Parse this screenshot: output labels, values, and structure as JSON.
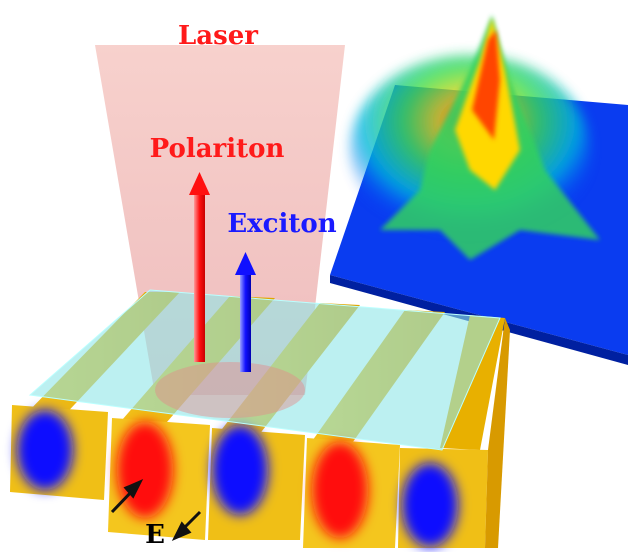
{
  "labels": {
    "laser": "Laser",
    "polariton": "Polariton",
    "exciton": "Exciton",
    "field": "E"
  }
}
